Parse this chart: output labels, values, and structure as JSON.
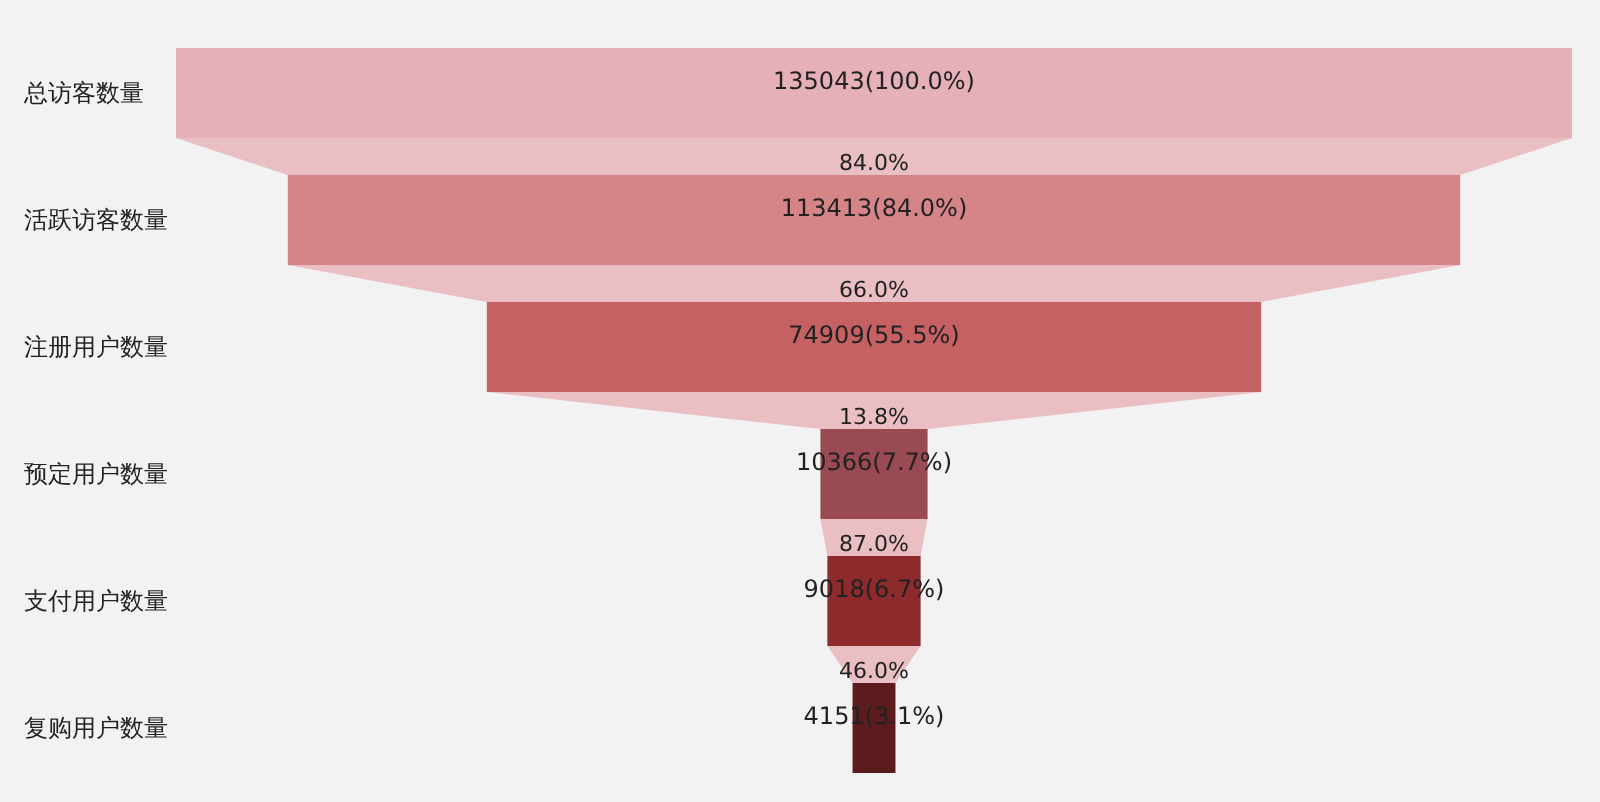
{
  "chart_data": {
    "type": "other",
    "categories": [
      "总访客数量",
      "活跃访客数量",
      "注册用户数量",
      "预定用户数量",
      "支付用户数量",
      "复购用户数量"
    ],
    "values": [
      135043,
      113413,
      74909,
      10366,
      9018,
      4151
    ],
    "value_labels": [
      "135043(100.0%)",
      "113413(84.0%)",
      "74909(55.5%)",
      "10366(7.7%)",
      "9018(6.7%)",
      "4151(3.1%)"
    ],
    "colors": [
      "#e6b0b8",
      "#d58488",
      "#c56063",
      "#9a4a52",
      "#8c2a2c",
      "#5c1c1e"
    ],
    "annotations": [
      "84.0%",
      "66.0%",
      "13.8%",
      "87.0%",
      "46.0%"
    ]
  }
}
